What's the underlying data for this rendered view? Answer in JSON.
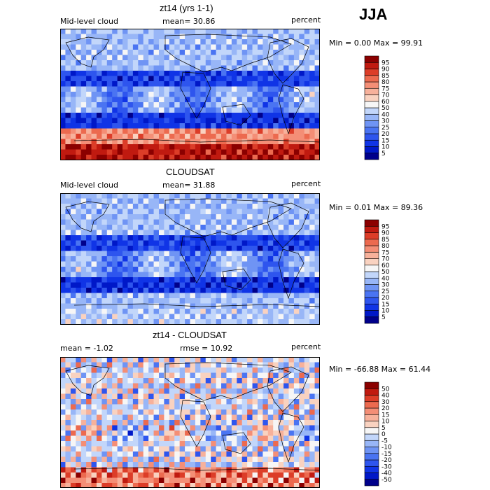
{
  "season": "JJA",
  "chart_data": [
    {
      "type": "heatmap",
      "title": "zt14 (yrs 1-1)",
      "variable": "Mid-level cloud",
      "units": "percent",
      "mean_label": "mean=  30.86",
      "stats_label": "Min =    0.00 Max =   99.91",
      "colorbar": {
        "levels": [
          "5",
          "10",
          "15",
          "20",
          "25",
          "30",
          "40",
          "50",
          "60",
          "70",
          "75",
          "80",
          "85",
          "90",
          "95"
        ],
        "colors": [
          "#00008b",
          "#0018c8",
          "#1034e6",
          "#2e55ee",
          "#4a74f2",
          "#6f94f4",
          "#98b6f7",
          "#c2d6fa",
          "#f6f6f6",
          "#f9d2c0",
          "#f7b19b",
          "#f48e76",
          "#ec6a4f",
          "#dc3d28",
          "#c01a10",
          "#8b0000"
        ]
      }
    },
    {
      "type": "heatmap",
      "title": "CLOUDSAT",
      "variable": "Mid-level cloud",
      "units": "percent",
      "mean_label": "mean=  31.88",
      "stats_label": "Min =    0.01 Max =   89.36",
      "colorbar": {
        "levels": [
          "5",
          "10",
          "15",
          "20",
          "25",
          "30",
          "40",
          "50",
          "60",
          "70",
          "75",
          "80",
          "85",
          "90",
          "95"
        ],
        "colors": [
          "#00008b",
          "#0018c8",
          "#1034e6",
          "#2e55ee",
          "#4a74f2",
          "#6f94f4",
          "#98b6f7",
          "#c2d6fa",
          "#f6f6f6",
          "#f9d2c0",
          "#f7b19b",
          "#f48e76",
          "#ec6a4f",
          "#dc3d28",
          "#c01a10",
          "#8b0000"
        ]
      }
    },
    {
      "type": "heatmap",
      "title": "zt14 - CLOUDSAT",
      "units": "percent",
      "mean_label": "mean =   -1.02",
      "rmse_label": "rmse =   10.92",
      "stats_label": "Min = -66.88 Max =   61.44",
      "colorbar": {
        "levels": [
          "-50",
          "-40",
          "-30",
          "-20",
          "-15",
          "-10",
          "-5",
          "0",
          "5",
          "10",
          "15",
          "20",
          "30",
          "40",
          "50"
        ],
        "colors": [
          "#00008b",
          "#0018c8",
          "#1034e6",
          "#2e55ee",
          "#4a74f2",
          "#6f94f4",
          "#98b6f7",
          "#c2d6fa",
          "#f6f6f6",
          "#f9d2c0",
          "#f7b19b",
          "#f48e76",
          "#ec6a4f",
          "#dc3d28",
          "#c01a10",
          "#8b0000"
        ]
      }
    }
  ]
}
